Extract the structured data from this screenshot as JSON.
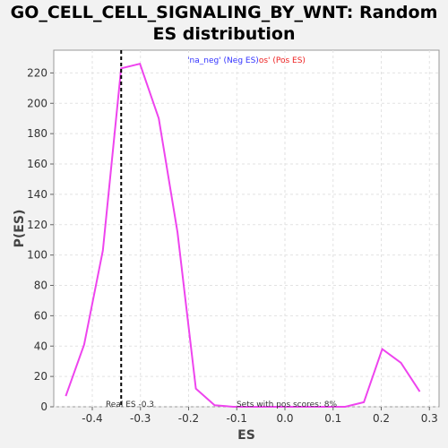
{
  "chart_data": {
    "type": "line",
    "title_line1": "GO_CELL_CELL_SIGNALING_BY_WNT: Random",
    "title_line2": "ES distribution",
    "xlabel": "ES",
    "ylabel": "P(ES)",
    "xlim": [
      -0.48,
      0.32
    ],
    "ylim": [
      0,
      235
    ],
    "xticks": [
      -0.4,
      -0.3,
      -0.2,
      -0.1,
      0.0,
      0.1,
      0.2,
      0.3
    ],
    "xtick_labels": [
      "-0.4",
      "-0.3",
      "-0.2",
      "-0.1",
      "0.0",
      "0.1",
      "0.2",
      "0.3"
    ],
    "yticks": [
      0,
      20,
      40,
      60,
      80,
      100,
      120,
      140,
      160,
      180,
      200,
      220
    ],
    "ytick_labels": [
      "0",
      "20",
      "40",
      "60",
      "80",
      "100",
      "120",
      "140",
      "160",
      "180",
      "200",
      "220"
    ],
    "grid": true,
    "series": [
      {
        "color": "#ee44ee",
        "x": [
          -0.455,
          -0.417,
          -0.378,
          -0.34,
          -0.301,
          -0.262,
          -0.223,
          -0.185,
          -0.146,
          -0.107,
          -0.069,
          -0.03,
          0.009,
          0.047,
          0.086,
          0.125,
          0.164,
          0.202,
          0.241,
          0.28
        ],
        "y": [
          7,
          41,
          103,
          223,
          226,
          190,
          115,
          12,
          1,
          0,
          0,
          0,
          0,
          0,
          0,
          0,
          3,
          38,
          29,
          10
        ]
      }
    ],
    "real_es": -0.34,
    "legend": {
      "neg_text": "'na_neg' (Neg ES)",
      "pos_text": "os' (Pos ES)",
      "neg_color": "#3333ff",
      "pos_color": "#ee2222",
      "placement": "top-center"
    },
    "annotations": {
      "real_es_label": "Real ES -0.3",
      "pos_scores_label": "Sets with pos scores: 8%"
    }
  }
}
